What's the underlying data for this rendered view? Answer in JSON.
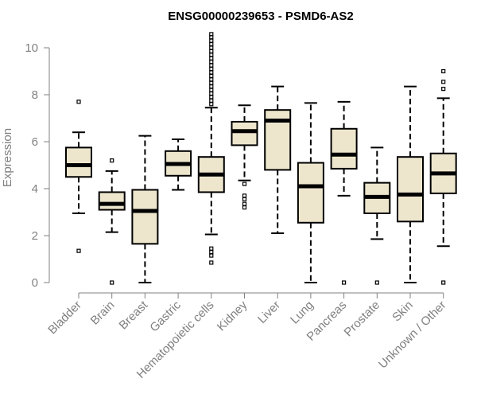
{
  "chart_data": {
    "type": "boxplot",
    "title": "ENSG00000239653 - PSMD6-AS2",
    "xlabel": "",
    "ylabel": "Expression",
    "ylim": [
      0,
      10.5
    ],
    "yticks": [
      0,
      2,
      4,
      6,
      8,
      10
    ],
    "categories": [
      "Bladder",
      "Brain",
      "Breast",
      "Gastric",
      "Hematopoietic cells",
      "Kidney",
      "Liver",
      "Lung",
      "Pancreas",
      "Prostate",
      "Skin",
      "Unknown / Other"
    ],
    "box_fill": "#ede6cd",
    "boxes": [
      {
        "name": "Bladder",
        "min": 2.95,
        "q1": 4.5,
        "median": 5.0,
        "q3": 5.75,
        "max": 6.4,
        "outliers": [
          7.7,
          1.35
        ]
      },
      {
        "name": "Brain",
        "min": 2.15,
        "q1": 3.1,
        "median": 3.35,
        "q3": 3.85,
        "max": 4.75,
        "outliers": [
          5.2,
          0.0
        ]
      },
      {
        "name": "Breast",
        "min": 0.0,
        "q1": 1.65,
        "median": 3.05,
        "q3": 3.95,
        "max": 6.25,
        "outliers": []
      },
      {
        "name": "Gastric",
        "min": 3.95,
        "q1": 4.55,
        "median": 5.05,
        "q3": 5.6,
        "max": 6.1,
        "outliers": []
      },
      {
        "name": "Hematopoietic cells",
        "min": 2.05,
        "q1": 3.85,
        "median": 4.6,
        "q3": 5.35,
        "max": 7.45,
        "outliers": [
          7.6,
          7.75,
          7.9,
          8.05,
          8.2,
          8.35,
          8.5,
          8.65,
          8.8,
          8.95,
          9.1,
          9.25,
          9.4,
          9.55,
          9.7,
          9.85,
          10.0,
          10.15,
          10.3,
          10.45,
          10.58,
          1.45,
          1.3,
          1.15,
          0.85
        ]
      },
      {
        "name": "Kidney",
        "min": 4.35,
        "q1": 5.85,
        "median": 6.45,
        "q3": 6.85,
        "max": 7.55,
        "outliers": [
          4.2,
          3.7,
          3.55,
          3.35,
          3.2
        ]
      },
      {
        "name": "Liver",
        "min": 2.1,
        "q1": 4.8,
        "median": 6.9,
        "q3": 7.35,
        "max": 8.35,
        "outliers": []
      },
      {
        "name": "Lung",
        "min": 0.0,
        "q1": 2.55,
        "median": 4.1,
        "q3": 5.1,
        "max": 7.65,
        "outliers": []
      },
      {
        "name": "Pancreas",
        "min": 3.7,
        "q1": 4.85,
        "median": 5.45,
        "q3": 6.55,
        "max": 7.7,
        "outliers": [
          0.0
        ]
      },
      {
        "name": "Prostate",
        "min": 1.85,
        "q1": 2.95,
        "median": 3.65,
        "q3": 4.25,
        "max": 5.75,
        "outliers": [
          0.0
        ]
      },
      {
        "name": "Skin",
        "min": 0.0,
        "q1": 2.6,
        "median": 3.75,
        "q3": 5.35,
        "max": 8.35,
        "outliers": []
      },
      {
        "name": "Unknown / Other",
        "min": 1.55,
        "q1": 3.8,
        "median": 4.65,
        "q3": 5.5,
        "max": 7.85,
        "outliers": [
          8.25,
          8.55,
          9.0,
          0.0
        ]
      }
    ]
  }
}
